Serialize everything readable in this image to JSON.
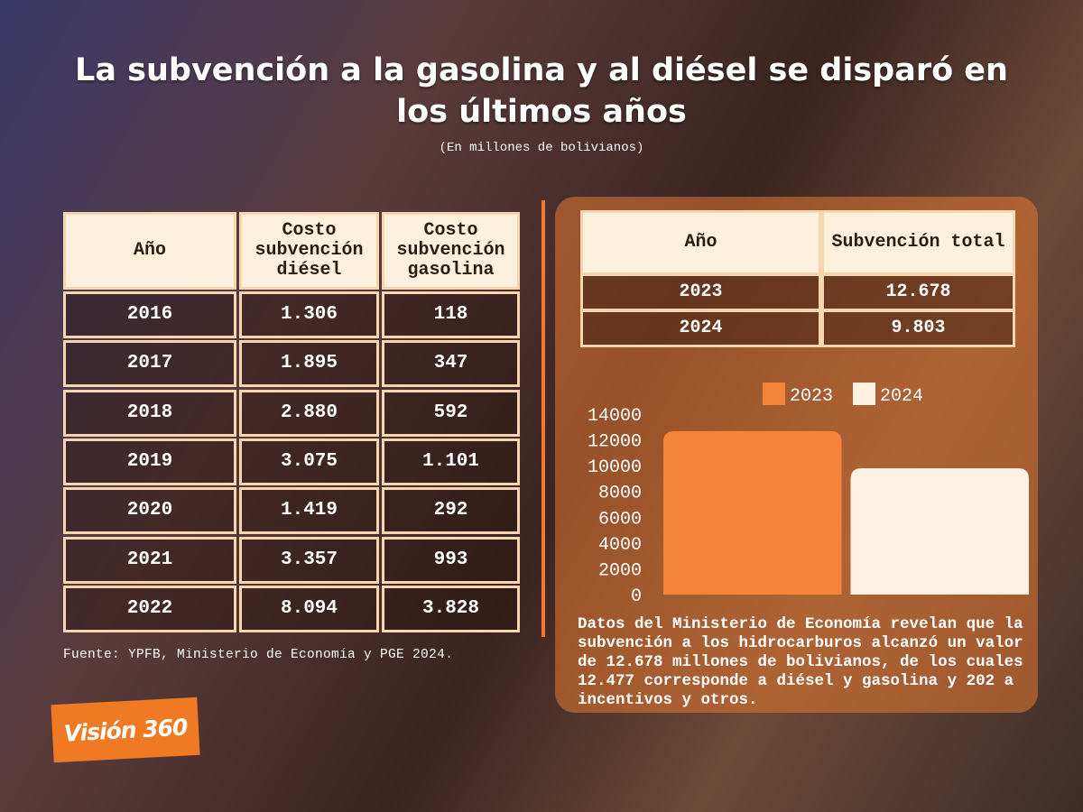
{
  "header": {
    "title": "La subvención a la gasolina y al diésel se disparó en los últimos años",
    "subtitle": "(En millones de bolivianos)"
  },
  "table": {
    "columns": [
      "Año",
      "Costo subvención diésel",
      "Costo subvención gasolina"
    ],
    "rows": [
      [
        "2016",
        "1.306",
        "118"
      ],
      [
        "2017",
        "1.895",
        "347"
      ],
      [
        "2018",
        "2.880",
        "592"
      ],
      [
        "2019",
        "3.075",
        "1.101"
      ],
      [
        "2020",
        "1.419",
        "292"
      ],
      [
        "2021",
        "3.357",
        "993"
      ],
      [
        "2022",
        "8.094",
        "3.828"
      ]
    ]
  },
  "source": "Fuente: YPFB, Ministerio de Economía y PGE 2024.",
  "summary_table": {
    "columns": [
      "Año",
      "Subvención total"
    ],
    "rows": [
      [
        "2023",
        "12.678"
      ],
      [
        "2024",
        "9.803"
      ]
    ]
  },
  "chart_data": {
    "type": "bar",
    "categories": [
      null
    ],
    "series": [
      {
        "name": "2023",
        "color": "#f3843a",
        "values": [
          12678
        ]
      },
      {
        "name": "2024",
        "color": "#fdf2e2",
        "values": [
          9803
        ]
      }
    ],
    "ylim": [
      0,
      14000
    ],
    "yticks": [
      0,
      2000,
      4000,
      6000,
      8000,
      10000,
      12000,
      14000
    ],
    "legend": "top"
  },
  "note": "Datos del Ministerio de Economía revelan que la subvención a los hidrocarburos alcanzó un valor de 12.678 millones de bolivianos, de los cuales  12.477 corresponde a diésel y gasolina y 202 a incentivos y otros.",
  "logo": "Visión 360"
}
